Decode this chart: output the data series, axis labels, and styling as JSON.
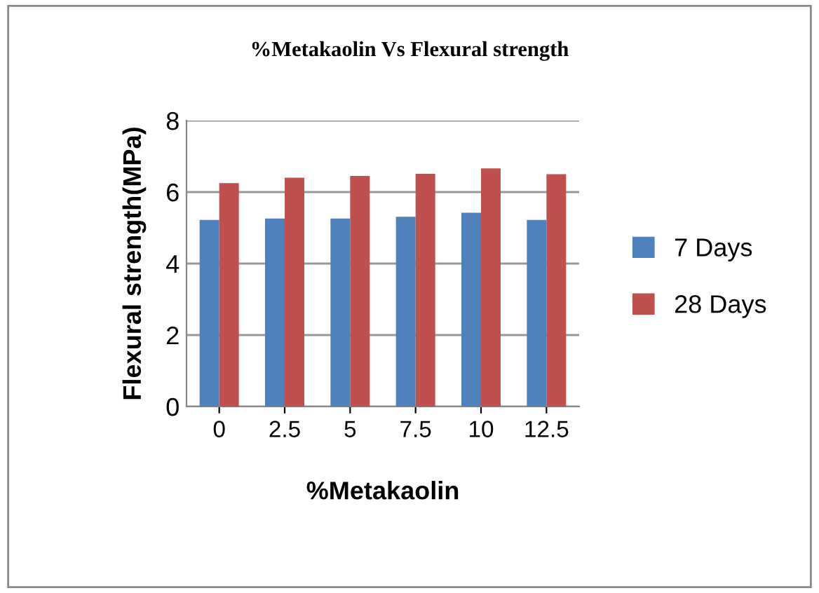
{
  "chart_data": {
    "type": "bar",
    "title": "%Metakaolin Vs Flexural strength",
    "xlabel": "%Metakaolin",
    "ylabel": "Flexural strength(MPa)",
    "categories": [
      "0",
      "2.5",
      "5",
      "7.5",
      "10",
      "12.5"
    ],
    "series": [
      {
        "name": "7 Days",
        "color": "#4f81bd",
        "values": [
          5.22,
          5.26,
          5.26,
          5.31,
          5.42,
          5.22
        ]
      },
      {
        "name": "28 Days",
        "color": "#c0504d",
        "values": [
          6.25,
          6.4,
          6.45,
          6.51,
          6.66,
          6.5
        ]
      }
    ],
    "ylim": [
      0,
      8
    ],
    "yticks": [
      0,
      2,
      4,
      6,
      8
    ],
    "grid": "y",
    "legend": "right"
  }
}
